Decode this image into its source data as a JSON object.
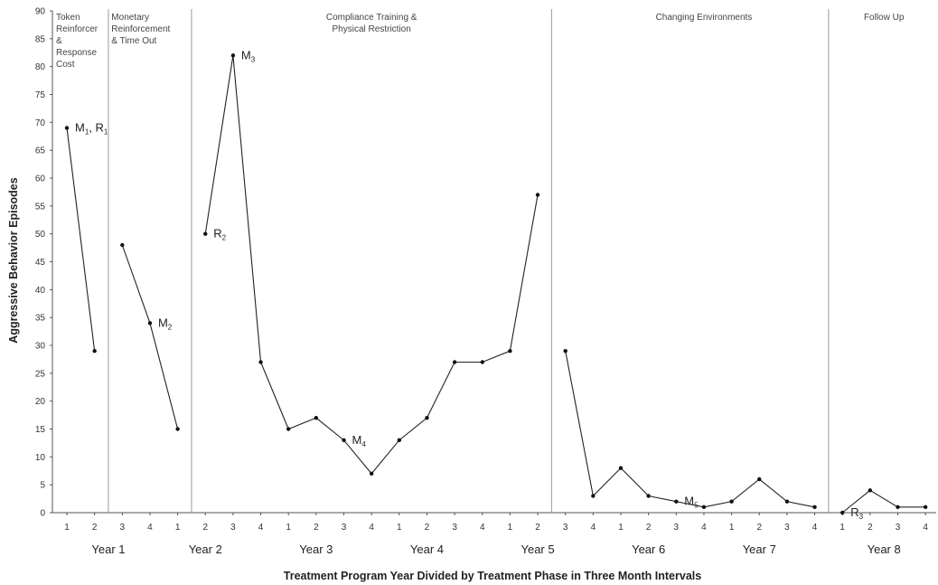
{
  "chart_data": {
    "type": "line",
    "title": "",
    "xlabel": "Treatment Program Year Divided by Treatment Phase in Three Month Intervals",
    "ylabel": "Aggressive Behavior Episodes",
    "ylim": [
      0,
      90
    ],
    "yticks": [
      0,
      5,
      10,
      15,
      20,
      25,
      30,
      35,
      40,
      45,
      50,
      55,
      60,
      65,
      70,
      75,
      80,
      85,
      90
    ],
    "grid": false,
    "x_tick_labels": [
      "1",
      "2",
      "3",
      "4",
      "1",
      "2",
      "3",
      "4",
      "1",
      "2",
      "3",
      "4",
      "1",
      "2",
      "3",
      "4",
      "1",
      "2",
      "3",
      "4",
      "1",
      "2",
      "3",
      "4",
      "1",
      "2",
      "3",
      "4",
      "1",
      "2",
      "3",
      "4"
    ],
    "year_labels": [
      {
        "label": "Year 1",
        "center": 1.5
      },
      {
        "label": "Year 2",
        "center": 5
      },
      {
        "label": "Year 3",
        "center": 9
      },
      {
        "label": "Year 4",
        "center": 13
      },
      {
        "label": "Year 5",
        "center": 17
      },
      {
        "label": "Year 6",
        "center": 21
      },
      {
        "label": "Year 7",
        "center": 25
      },
      {
        "label": "Year 8",
        "center": 29.5
      }
    ],
    "phases": [
      {
        "lines": [
          "Token",
          "Reinforcer",
          "&",
          "Response",
          "Cost"
        ],
        "align": "start",
        "anchor_x": 0
      },
      {
        "lines": [
          "Monetary",
          "Reinforcement",
          "& Time Out"
        ],
        "align": "start",
        "anchor_x": 2
      },
      {
        "lines": [
          "Compliance Training &",
          "Physical Restriction"
        ],
        "align": "middle",
        "anchor_x": 11
      },
      {
        "lines": [
          "Changing Environments"
        ],
        "align": "middle",
        "anchor_x": 23
      },
      {
        "lines": [
          "Follow Up"
        ],
        "align": "middle",
        "anchor_x": 29.5
      }
    ],
    "phase_dividers": [
      1.5,
      4.5,
      17.5,
      27.5
    ],
    "segments": [
      {
        "x": [
          0,
          1
        ],
        "y": [
          69,
          29
        ]
      },
      {
        "x": [
          2,
          3,
          4
        ],
        "y": [
          48,
          34,
          15
        ]
      },
      {
        "x": [
          5,
          6,
          7,
          8,
          9,
          10,
          11,
          12,
          13,
          14,
          15,
          16,
          17
        ],
        "y": [
          50,
          82,
          27,
          15,
          17,
          13,
          7,
          13,
          17,
          27,
          27,
          29,
          57
        ]
      },
      {
        "x": [
          18,
          19,
          20,
          21,
          22,
          23,
          24,
          25,
          26,
          27
        ],
        "y": [
          29,
          3,
          8,
          3,
          2,
          1,
          2,
          6,
          2,
          1
        ]
      },
      {
        "x": [
          28,
          29,
          30,
          31
        ],
        "y": [
          0,
          4,
          1,
          1
        ]
      }
    ],
    "annotations": [
      {
        "main": "M",
        "sub": "1",
        "tail": ", R",
        "tail_sub": "1",
        "x": 0,
        "y": 69
      },
      {
        "main": "M",
        "sub": "2",
        "tail": "",
        "tail_sub": "",
        "x": 3,
        "y": 34
      },
      {
        "main": "R",
        "sub": "2",
        "tail": "",
        "tail_sub": "",
        "x": 5,
        "y": 50
      },
      {
        "main": "M",
        "sub": "3",
        "tail": "",
        "tail_sub": "",
        "x": 6,
        "y": 82
      },
      {
        "main": "M",
        "sub": "4",
        "tail": "",
        "tail_sub": "",
        "x": 10,
        "y": 13
      },
      {
        "main": "M",
        "sub": "5",
        "tail": "",
        "tail_sub": "",
        "x": 22,
        "y": 2
      },
      {
        "main": "R",
        "sub": "3",
        "tail": "",
        "tail_sub": "",
        "x": 28,
        "y": 0
      }
    ]
  }
}
